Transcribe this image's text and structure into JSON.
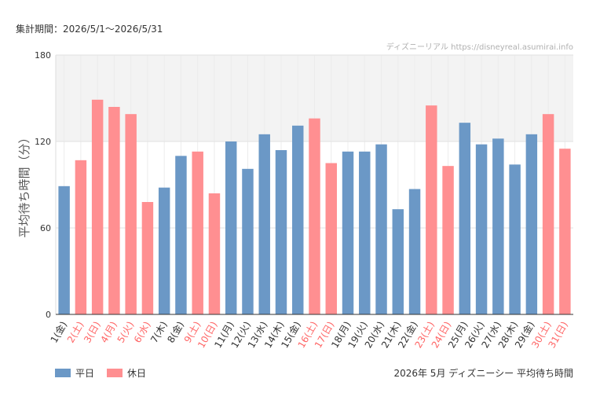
{
  "header": {
    "period": "集計期間：2026/5/1～2026/5/31",
    "credit": "ディズニーリアル https://disneyreal.asumirai.info"
  },
  "legend": {
    "weekday": "平日",
    "holiday": "休日"
  },
  "footer": {
    "title": "2026年 5月 ディズニーシー 平均待ち時間"
  },
  "colors": {
    "weekday": "#6b98c6",
    "holiday": "#ff8f91",
    "holiday_text": "#ff6666",
    "band": "#f3f3f3"
  },
  "chart_data": {
    "type": "bar",
    "ylabel": "平均待ち時間（分）",
    "ylim": [
      0,
      180
    ],
    "yticks": [
      0,
      60,
      120,
      180
    ],
    "shaded_band": [
      120,
      180
    ],
    "grid": true,
    "legend_position": "bottom-left",
    "categories": [
      "1(金)",
      "2(土)",
      "3(日)",
      "4(月)",
      "5(火)",
      "6(水)",
      "7(木)",
      "8(金)",
      "9(土)",
      "10(日)",
      "11(月)",
      "12(火)",
      "13(水)",
      "14(木)",
      "15(金)",
      "16(土)",
      "17(日)",
      "18(月)",
      "19(火)",
      "20(水)",
      "21(木)",
      "22(金)",
      "23(土)",
      "24(日)",
      "25(月)",
      "26(火)",
      "27(水)",
      "28(木)",
      "29(金)",
      "30(土)",
      "31(日)"
    ],
    "values": [
      89,
      107,
      149,
      144,
      139,
      78,
      88,
      110,
      113,
      84,
      120,
      101,
      125,
      114,
      131,
      136,
      105,
      113,
      113,
      118,
      73,
      87,
      145,
      103,
      133,
      118,
      122,
      104,
      125,
      139,
      115
    ],
    "holiday": [
      false,
      true,
      true,
      true,
      true,
      true,
      false,
      false,
      true,
      true,
      false,
      false,
      false,
      false,
      false,
      true,
      true,
      false,
      false,
      false,
      false,
      false,
      true,
      true,
      false,
      false,
      false,
      false,
      false,
      true,
      true
    ]
  }
}
